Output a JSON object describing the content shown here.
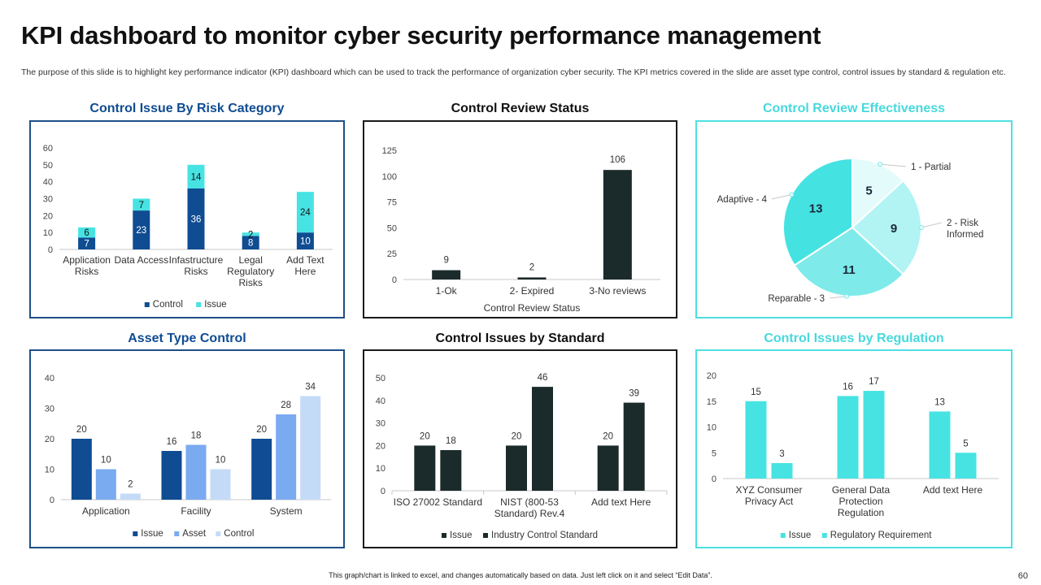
{
  "page": {
    "title": "KPI dashboard to monitor cyber security performance management",
    "subtitle": "The purpose of this slide is to highlight key performance indicator (KPI) dashboard which can be used to track the performance of organization cyber security. The KPI metrics covered in the slide are asset type control, control issues by standard & regulation etc.",
    "footer": "This graph/chart is linked to excel, and changes automatically based on data. Just left click on it and select “Edit Data”.",
    "page_number": "60"
  },
  "colors": {
    "navy": "#0f4c92",
    "teal": "#47e3e3",
    "dark": "#1b2a2a",
    "blue_mid": "#7aaaf0",
    "blue_light": "#c4dbf8",
    "border_navy": "#1d4f86",
    "border_black": "#1a1a1a",
    "border_teal": "#4fdfe2"
  },
  "chart_data": [
    {
      "id": "risk",
      "type": "bar",
      "stacked": true,
      "title": "Control Issue By Risk Category",
      "categories": [
        "Application Risks",
        "Data Access",
        "Infastructure Risks",
        "Legal Regulatory Risks",
        "Add Text Here"
      ],
      "series": [
        {
          "name": "Control",
          "values": [
            7,
            23,
            36,
            8,
            10
          ]
        },
        {
          "name": "Issue",
          "values": [
            6,
            7,
            14,
            2,
            24
          ]
        }
      ],
      "ylim": [
        0,
        60
      ],
      "yticks": [
        "0",
        "10",
        "20",
        "30",
        "40",
        "50",
        "60"
      ],
      "legend": "bottom"
    },
    {
      "id": "review",
      "type": "bar",
      "title": "Control Review Status",
      "xlabel": "Control Review Status",
      "categories": [
        "1-Ok",
        "2- Expired",
        "3-No reviews"
      ],
      "values": [
        9,
        2,
        106
      ],
      "ylim": [
        0,
        125
      ],
      "yticks": [
        "0",
        "25",
        "50",
        "75",
        "100",
        "125"
      ]
    },
    {
      "id": "effect",
      "type": "pie",
      "title": "Control Review Effectiveness",
      "slices": [
        {
          "label": "1 - Partial",
          "value": 5
        },
        {
          "label": "2 - Risk Informed",
          "value": 9
        },
        {
          "label": "Reparable - 3",
          "value": 11
        },
        {
          "label": "Adaptive - 4",
          "value": 13
        }
      ]
    },
    {
      "id": "asset",
      "type": "bar",
      "title": "Asset Type Control",
      "categories": [
        "Application",
        "Facility",
        "System"
      ],
      "series": [
        {
          "name": "Issue",
          "values": [
            20,
            16,
            20
          ]
        },
        {
          "name": "Asset",
          "values": [
            10,
            18,
            28
          ]
        },
        {
          "name": "Control",
          "values": [
            2,
            10,
            34
          ]
        }
      ],
      "ylim": [
        0,
        40
      ],
      "yticks": [
        "0",
        "10",
        "20",
        "30",
        "40"
      ],
      "legend": "bottom"
    },
    {
      "id": "standard",
      "type": "bar",
      "title": "Control Issues  by Standard",
      "categories": [
        "ISO 27002 Standard",
        "NIST (800-53 Standard) Rev.4",
        "Add text Here"
      ],
      "series": [
        {
          "name": "Issue",
          "values": [
            20,
            20,
            20
          ]
        },
        {
          "name": "Industry Control Standard",
          "values": [
            18,
            46,
            39
          ]
        }
      ],
      "ylim": [
        0,
        50
      ],
      "yticks": [
        "0",
        "10",
        "20",
        "30",
        "40",
        "50"
      ],
      "legend": "bottom"
    },
    {
      "id": "regulation",
      "type": "bar",
      "title": "Control Issues  by Regulation",
      "categories": [
        "XYZ Consumer Privacy Act",
        "General Data Protection Regulation",
        "Add text Here"
      ],
      "series": [
        {
          "name": "Issue",
          "values": [
            15,
            16,
            13
          ]
        },
        {
          "name": "Regulatory Requirement",
          "values": [
            3,
            17,
            5
          ]
        }
      ],
      "ylim": [
        0,
        20
      ],
      "yticks": [
        "0",
        "5",
        "10",
        "15",
        "20"
      ],
      "legend": "bottom"
    }
  ]
}
